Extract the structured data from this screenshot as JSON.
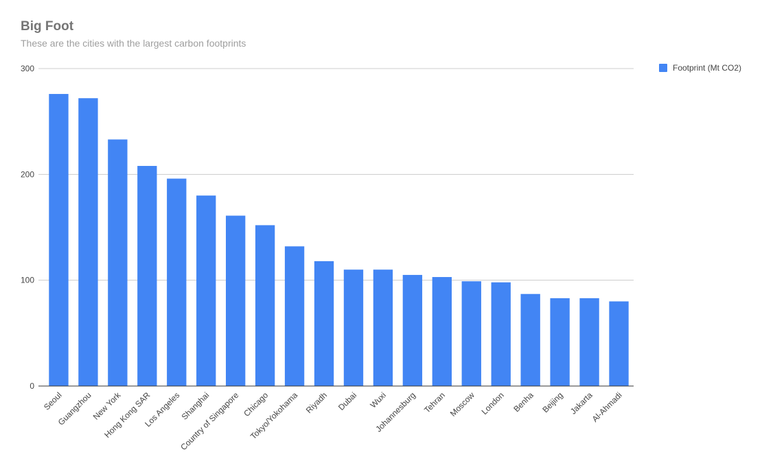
{
  "chart_data": {
    "type": "bar",
    "title": "Big Foot",
    "subtitle": "These are the cities with the largest carbon footprints",
    "xlabel": "",
    "ylabel": "",
    "ylim": [
      0,
      300
    ],
    "yticks": [
      0,
      100,
      200,
      300
    ],
    "grid": true,
    "legend_position": "right",
    "categories": [
      "Seoul",
      "Guangzhou",
      "New York",
      "Hong Kong SAR",
      "Los Angeles",
      "Shanghai",
      "Country of Singapore",
      "Chicago",
      "Tokyo/Yokohama",
      "Riyadh",
      "Dubai",
      "Wuxi",
      "Johannesburg",
      "Tehran",
      "Moscow",
      "London",
      "Benha",
      "Beijing",
      "Jakarta",
      "Al-Ahmadi"
    ],
    "series": [
      {
        "name": "Footprint (Mt CO2)",
        "color": "#4285f4",
        "values": [
          276,
          272,
          233,
          208,
          196,
          180,
          161,
          152,
          132,
          118,
          110,
          110,
          105,
          103,
          99,
          98,
          87,
          83,
          83,
          80
        ]
      }
    ]
  }
}
